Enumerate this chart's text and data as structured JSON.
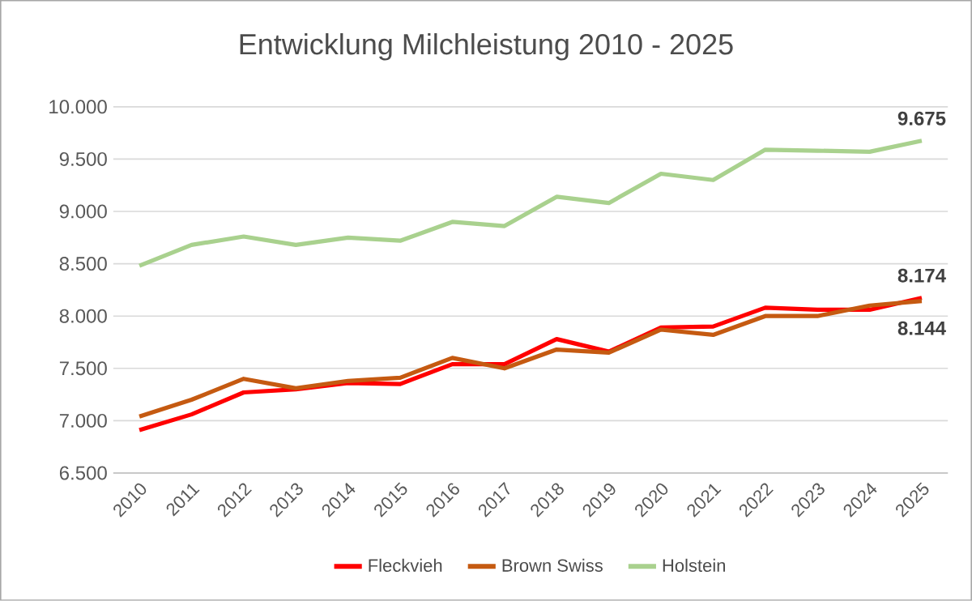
{
  "chart_data": {
    "type": "line",
    "title": "Entwicklung Milchleistung 2010 - 2025",
    "categories": [
      "2010",
      "2011",
      "2012",
      "2013",
      "2014",
      "2015",
      "2016",
      "2017",
      "2018",
      "2019",
      "2020",
      "2021",
      "2022",
      "2023",
      "2024",
      "2025"
    ],
    "series": [
      {
        "name": "Fleckvieh",
        "color": "#ff0000",
        "values": [
          6910,
          7060,
          7270,
          7300,
          7360,
          7350,
          7540,
          7540,
          7780,
          7660,
          7890,
          7900,
          8080,
          8060,
          8060,
          8174
        ],
        "value_labels": [
          null,
          null,
          null,
          null,
          null,
          null,
          null,
          null,
          null,
          null,
          null,
          null,
          null,
          null,
          null,
          "8.174"
        ]
      },
      {
        "name": "Brown Swiss",
        "color": "#c55a11",
        "values": [
          7040,
          7200,
          7400,
          7310,
          7380,
          7410,
          7600,
          7500,
          7680,
          7650,
          7870,
          7820,
          8000,
          8000,
          8100,
          8144
        ],
        "value_labels": [
          null,
          null,
          null,
          null,
          null,
          null,
          null,
          null,
          null,
          null,
          null,
          null,
          null,
          null,
          null,
          "8.144"
        ]
      },
      {
        "name": "Holstein",
        "color": "#a9d18e",
        "values": [
          8480,
          8680,
          8760,
          8680,
          8750,
          8720,
          8900,
          8860,
          9140,
          9080,
          9360,
          9300,
          9590,
          9580,
          9570,
          9675
        ],
        "value_labels": [
          null,
          null,
          null,
          null,
          null,
          null,
          null,
          null,
          null,
          null,
          null,
          null,
          null,
          null,
          null,
          "9.675"
        ]
      }
    ],
    "ylim": [
      6500,
      10000
    ],
    "yticks": [
      {
        "value": 6500,
        "label": "6.500"
      },
      {
        "value": 7000,
        "label": "7.000"
      },
      {
        "value": 7500,
        "label": "7.500"
      },
      {
        "value": 8000,
        "label": "8.000"
      },
      {
        "value": 8500,
        "label": "8.500"
      },
      {
        "value": 9000,
        "label": "9.000"
      },
      {
        "value": 9500,
        "label": "9.500"
      },
      {
        "value": 10000,
        "label": "10.000"
      }
    ],
    "grid": "y",
    "legend": "bottom",
    "marker": "none",
    "line_style": "solid"
  }
}
